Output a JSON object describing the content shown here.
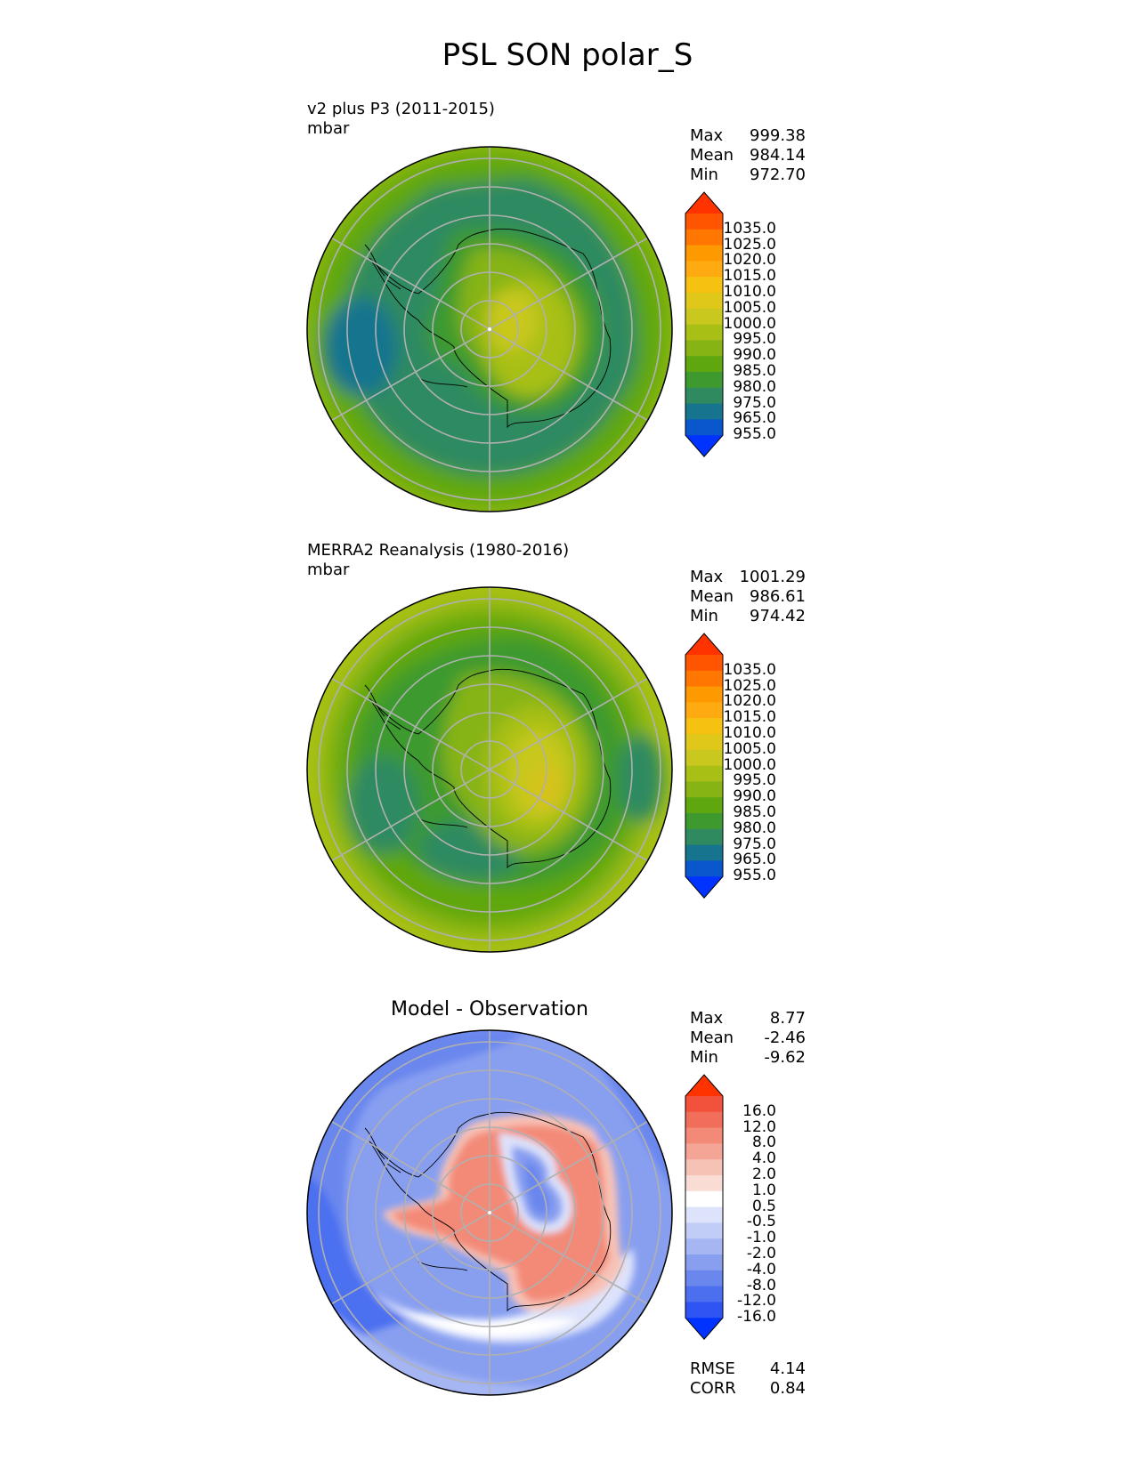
{
  "figure_title": "PSL SON polar_S",
  "chart_data": [
    {
      "type": "heatmap",
      "projection": "south polar stereographic",
      "title": "v2 plus P3 (2011-2015)",
      "units": "mbar",
      "stats": [
        {
          "label": "Max",
          "value": "999.38"
        },
        {
          "label": "Mean",
          "value": "984.14"
        },
        {
          "label": "Min",
          "value": "972.70"
        }
      ],
      "colorbar": {
        "ticks": [
          "1035.0",
          "1025.0",
          "1020.0",
          "1015.0",
          "1010.0",
          "1005.0",
          "1000.0",
          "995.0",
          "990.0",
          "985.0",
          "980.0",
          "975.0",
          "965.0",
          "955.0"
        ],
        "colors": [
          "#ff3300",
          "#ff5500",
          "#ff7700",
          "#ff9900",
          "#ffaa11",
          "#f5c211",
          "#e0c81a",
          "#c8c81e",
          "#a8c016",
          "#86b415",
          "#5ea70f",
          "#3e9a2e",
          "#2f8a60",
          "#16748e",
          "#0a56cc",
          "#0033ff"
        ]
      }
    },
    {
      "type": "heatmap",
      "projection": "south polar stereographic",
      "title": "MERRA2 Reanalysis (1980-2016)",
      "units": "mbar",
      "stats": [
        {
          "label": "Max",
          "value": "1001.29"
        },
        {
          "label": "Mean",
          "value": "986.61"
        },
        {
          "label": "Min",
          "value": "974.42"
        }
      ],
      "colorbar": {
        "ticks": [
          "1035.0",
          "1025.0",
          "1020.0",
          "1015.0",
          "1010.0",
          "1005.0",
          "1000.0",
          "995.0",
          "990.0",
          "985.0",
          "980.0",
          "975.0",
          "965.0",
          "955.0"
        ],
        "colors": [
          "#ff3300",
          "#ff5500",
          "#ff7700",
          "#ff9900",
          "#ffaa11",
          "#f5c211",
          "#e0c81a",
          "#c8c81e",
          "#a8c016",
          "#86b415",
          "#5ea70f",
          "#3e9a2e",
          "#2f8a60",
          "#16748e",
          "#0a56cc",
          "#0033ff"
        ]
      }
    },
    {
      "type": "heatmap",
      "projection": "south polar stereographic",
      "title": "Model - Observation",
      "units": "",
      "stats": [
        {
          "label": "Max",
          "value": "8.77"
        },
        {
          "label": "Mean",
          "value": "-2.46"
        },
        {
          "label": "Min",
          "value": "-9.62"
        }
      ],
      "metrics": [
        {
          "label": "RMSE",
          "value": "4.14"
        },
        {
          "label": "CORR",
          "value": "0.84"
        }
      ],
      "colorbar": {
        "ticks": [
          "16.0",
          "12.0",
          "8.0",
          "4.0",
          "2.0",
          "1.0",
          "0.5",
          "-0.5",
          "-1.0",
          "-2.0",
          "-4.0",
          "-8.0",
          "-12.0",
          "-16.0"
        ],
        "colors": [
          "#ff3300",
          "#f2523c",
          "#f06e5a",
          "#f38a78",
          "#f5a596",
          "#f7c2b6",
          "#f9dcd4",
          "#ffffff",
          "#dde3fb",
          "#c1cdf7",
          "#a5b6f3",
          "#889ff0",
          "#6a87ee",
          "#4c6ff0",
          "#2e55f3",
          "#0033ff"
        ]
      }
    }
  ]
}
